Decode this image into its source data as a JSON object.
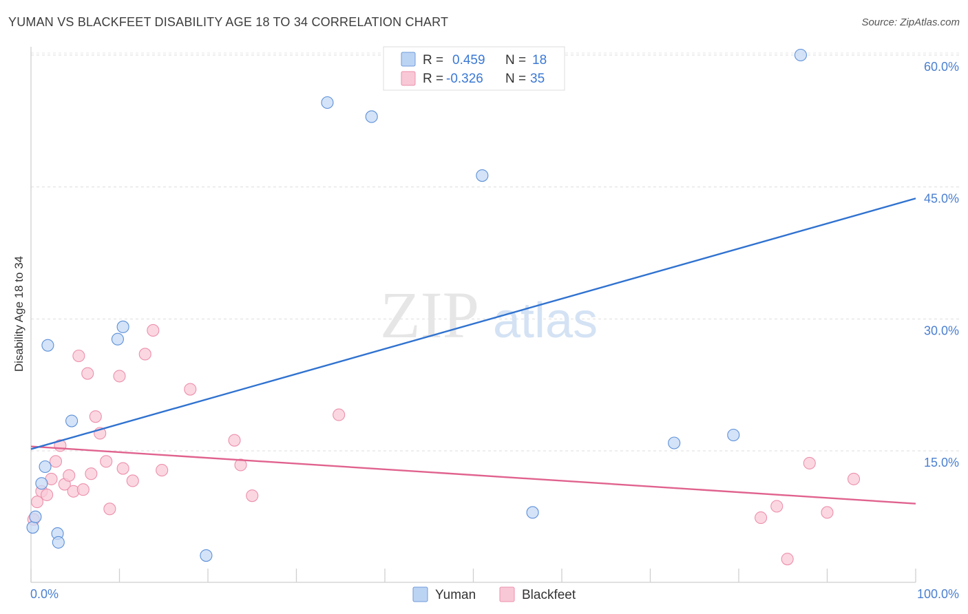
{
  "header": {
    "title": "YUMAN VS BLACKFEET DISABILITY AGE 18 TO 34 CORRELATION CHART",
    "source": "Source: ZipAtlas.com"
  },
  "watermark": {
    "zip": "ZIP",
    "atlas": "atlas"
  },
  "legend": {
    "r_label": "R =",
    "n_label": "N =",
    "entries": [
      {
        "r": "0.459",
        "n": "18"
      },
      {
        "r": "-0.326",
        "n": "35"
      }
    ]
  },
  "chart_data": {
    "type": "scatter",
    "title": "YUMAN VS BLACKFEET DISABILITY AGE 18 TO 34 CORRELATION CHART",
    "xlabel": "",
    "ylabel": "Disability Age 18 to 34",
    "xlim": [
      0,
      100
    ],
    "ylim": [
      0,
      62
    ],
    "x_tick_labels": [
      "0.0%",
      "100.0%"
    ],
    "y_ticks": [
      15,
      30,
      45,
      60
    ],
    "y_tick_labels": [
      "15.0%",
      "30.0%",
      "45.0%",
      "60.0%"
    ],
    "colors": {
      "Yuman": "#5b8fd8",
      "Blackfeet": "#ec7fa0",
      "Yuman_line": "#2f72d0",
      "Blackfeet_line": "#e0628e"
    },
    "series": [
      {
        "name": "Yuman",
        "points": [
          [
            0.2,
            6.3
          ],
          [
            0.5,
            7.5
          ],
          [
            1.2,
            11.3
          ],
          [
            1.6,
            13.2
          ],
          [
            1.9,
            27.0
          ],
          [
            3.0,
            5.6
          ],
          [
            3.1,
            4.6
          ],
          [
            4.6,
            18.4
          ],
          [
            9.8,
            27.7
          ],
          [
            10.4,
            29.1
          ],
          [
            19.8,
            3.1
          ],
          [
            33.5,
            54.6
          ],
          [
            38.5,
            53.0
          ],
          [
            51.0,
            46.3
          ],
          [
            56.7,
            8.0
          ],
          [
            72.7,
            15.9
          ],
          [
            79.4,
            16.8
          ],
          [
            87.0,
            60.0
          ]
        ],
        "trend": [
          [
            0,
            15.2
          ],
          [
            100,
            43.7
          ]
        ]
      },
      {
        "name": "Blackfeet",
        "points": [
          [
            0.3,
            7.2
          ],
          [
            0.7,
            9.2
          ],
          [
            1.2,
            10.4
          ],
          [
            1.8,
            10.0
          ],
          [
            2.3,
            11.8
          ],
          [
            2.8,
            13.8
          ],
          [
            3.3,
            15.6
          ],
          [
            3.8,
            11.2
          ],
          [
            4.3,
            12.2
          ],
          [
            4.8,
            10.4
          ],
          [
            5.4,
            25.8
          ],
          [
            5.9,
            10.6
          ],
          [
            6.4,
            23.8
          ],
          [
            6.8,
            12.4
          ],
          [
            7.3,
            18.9
          ],
          [
            7.8,
            17.0
          ],
          [
            8.5,
            13.8
          ],
          [
            8.9,
            8.4
          ],
          [
            10.0,
            23.5
          ],
          [
            10.4,
            13.0
          ],
          [
            11.5,
            11.6
          ],
          [
            12.9,
            26.0
          ],
          [
            13.8,
            28.7
          ],
          [
            14.8,
            12.8
          ],
          [
            18.0,
            22.0
          ],
          [
            23.0,
            16.2
          ],
          [
            23.7,
            13.4
          ],
          [
            25.0,
            9.9
          ],
          [
            34.8,
            19.1
          ],
          [
            82.5,
            7.4
          ],
          [
            84.3,
            8.7
          ],
          [
            85.5,
            2.7
          ],
          [
            88.0,
            13.6
          ],
          [
            90.0,
            8.0
          ],
          [
            93.0,
            11.8
          ]
        ],
        "trend": [
          [
            0,
            15.5
          ],
          [
            100,
            9.0
          ]
        ]
      }
    ]
  },
  "bottom_legend": [
    "Yuman",
    "Blackfeet"
  ]
}
